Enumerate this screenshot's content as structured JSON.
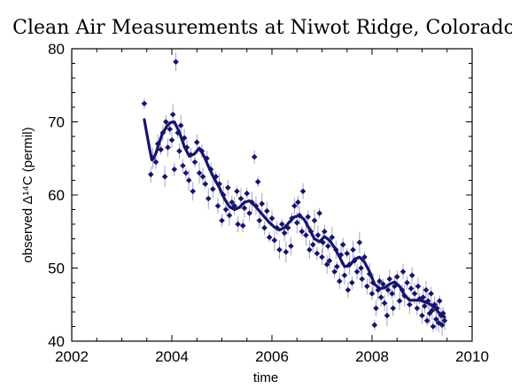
{
  "colors": {
    "marker": "#14146e",
    "fit_line": "#14146e",
    "error_bar": "#a3a3c8",
    "axis": "#000000",
    "background": "#ffffff"
  },
  "chart_data": {
    "type": "scatter",
    "title": "Clean Air Measurements at Niwot Ridge, Colorado",
    "xlabel": "time",
    "ylabel": "observed Δ¹⁴C (permil)",
    "xlim": [
      2002,
      2010
    ],
    "ylim": [
      40,
      80
    ],
    "xticks": [
      2002,
      2004,
      2006,
      2008,
      2010
    ],
    "yticks": [
      40,
      50,
      60,
      70,
      80
    ],
    "grid": false,
    "legend": "none",
    "series": [
      {
        "kind": "points",
        "marker": "diamond",
        "error_bars": true,
        "points": [
          [
            2003.45,
            72.5
          ],
          [
            2003.58,
            62.8
          ],
          [
            2003.62,
            65.0
          ],
          [
            2003.68,
            64.5
          ],
          [
            2003.72,
            67.0
          ],
          [
            2003.78,
            66.2
          ],
          [
            2003.82,
            68.5
          ],
          [
            2003.86,
            62.5
          ],
          [
            2003.88,
            70.0
          ],
          [
            2003.92,
            66.5
          ],
          [
            2003.96,
            69.0
          ],
          [
            2004.0,
            67.5
          ],
          [
            2004.02,
            71.0
          ],
          [
            2004.05,
            63.5
          ],
          [
            2004.08,
            78.2
          ],
          [
            2004.12,
            68.5
          ],
          [
            2004.15,
            66.0
          ],
          [
            2004.18,
            69.5
          ],
          [
            2004.22,
            64.0
          ],
          [
            2004.25,
            67.8
          ],
          [
            2004.28,
            63.0
          ],
          [
            2004.3,
            66.5
          ],
          [
            2004.34,
            62.0
          ],
          [
            2004.38,
            65.5
          ],
          [
            2004.42,
            60.5
          ],
          [
            2004.46,
            64.5
          ],
          [
            2004.5,
            67.2
          ],
          [
            2004.55,
            63.0
          ],
          [
            2004.6,
            66.0
          ],
          [
            2004.62,
            62.5
          ],
          [
            2004.67,
            61.5
          ],
          [
            2004.7,
            65.0
          ],
          [
            2004.73,
            59.5
          ],
          [
            2004.78,
            63.5
          ],
          [
            2004.82,
            60.8
          ],
          [
            2004.88,
            62.5
          ],
          [
            2004.92,
            58.5
          ],
          [
            2004.95,
            61.5
          ],
          [
            2005.0,
            56.5
          ],
          [
            2005.03,
            60.0
          ],
          [
            2005.08,
            58.0
          ],
          [
            2005.12,
            61.0
          ],
          [
            2005.15,
            57.2
          ],
          [
            2005.2,
            59.0
          ],
          [
            2005.25,
            58.5
          ],
          [
            2005.3,
            60.5
          ],
          [
            2005.32,
            56.0
          ],
          [
            2005.38,
            59.5
          ],
          [
            2005.42,
            55.8
          ],
          [
            2005.45,
            58.2
          ],
          [
            2005.5,
            60.2
          ],
          [
            2005.55,
            57.5
          ],
          [
            2005.6,
            59.0
          ],
          [
            2005.65,
            65.2
          ],
          [
            2005.68,
            58.5
          ],
          [
            2005.72,
            61.8
          ],
          [
            2005.75,
            56.5
          ],
          [
            2005.8,
            58.8
          ],
          [
            2005.85,
            55.5
          ],
          [
            2005.9,
            57.8
          ],
          [
            2005.95,
            54.2
          ],
          [
            2006.0,
            56.8
          ],
          [
            2006.05,
            53.8
          ],
          [
            2006.1,
            55.5
          ],
          [
            2006.15,
            52.5
          ],
          [
            2006.2,
            56.0
          ],
          [
            2006.25,
            54.8
          ],
          [
            2006.28,
            52.2
          ],
          [
            2006.32,
            55.5
          ],
          [
            2006.38,
            53.0
          ],
          [
            2006.4,
            56.8
          ],
          [
            2006.45,
            58.5
          ],
          [
            2006.5,
            56.2
          ],
          [
            2006.52,
            59.0
          ],
          [
            2006.55,
            57.2
          ],
          [
            2006.6,
            55.0
          ],
          [
            2006.62,
            60.5
          ],
          [
            2006.68,
            54.5
          ],
          [
            2006.72,
            57.0
          ],
          [
            2006.75,
            52.5
          ],
          [
            2006.78,
            55.0
          ],
          [
            2006.82,
            53.2
          ],
          [
            2006.85,
            56.5
          ],
          [
            2006.9,
            52.0
          ],
          [
            2006.92,
            54.5
          ],
          [
            2006.95,
            57.5
          ],
          [
            2007.0,
            51.5
          ],
          [
            2007.02,
            53.5
          ],
          [
            2007.05,
            55.0
          ],
          [
            2007.1,
            50.5
          ],
          [
            2007.12,
            53.0
          ],
          [
            2007.15,
            51.0
          ],
          [
            2007.2,
            54.2
          ],
          [
            2007.25,
            49.5
          ],
          [
            2007.28,
            52.5
          ],
          [
            2007.3,
            50.2
          ],
          [
            2007.35,
            48.2
          ],
          [
            2007.38,
            51.8
          ],
          [
            2007.42,
            53.2
          ],
          [
            2007.45,
            49.0
          ],
          [
            2007.5,
            52.0
          ],
          [
            2007.52,
            47.0
          ],
          [
            2007.55,
            50.5
          ],
          [
            2007.6,
            48.0
          ],
          [
            2007.62,
            52.5
          ],
          [
            2007.65,
            51.0
          ],
          [
            2007.7,
            49.5
          ],
          [
            2007.75,
            53.5
          ],
          [
            2007.78,
            50.0
          ],
          [
            2007.8,
            48.5
          ],
          [
            2007.85,
            51.5
          ],
          [
            2007.9,
            47.5
          ],
          [
            2007.95,
            49.2
          ],
          [
            2008.0,
            46.5
          ],
          [
            2008.02,
            48.0
          ],
          [
            2008.05,
            42.2
          ],
          [
            2008.08,
            44.5
          ],
          [
            2008.12,
            47.0
          ],
          [
            2008.15,
            48.2
          ],
          [
            2008.18,
            46.0
          ],
          [
            2008.22,
            47.8
          ],
          [
            2008.25,
            45.2
          ],
          [
            2008.3,
            43.5
          ],
          [
            2008.32,
            47.0
          ],
          [
            2008.35,
            48.5
          ],
          [
            2008.4,
            46.5
          ],
          [
            2008.42,
            44.5
          ],
          [
            2008.45,
            47.5
          ],
          [
            2008.5,
            48.8
          ],
          [
            2008.55,
            45.5
          ],
          [
            2008.6,
            47.0
          ],
          [
            2008.62,
            49.5
          ],
          [
            2008.65,
            46.2
          ],
          [
            2008.7,
            48.0
          ],
          [
            2008.75,
            45.0
          ],
          [
            2008.78,
            47.2
          ],
          [
            2008.8,
            49.0
          ],
          [
            2008.85,
            46.5
          ],
          [
            2008.9,
            44.5
          ],
          [
            2008.92,
            47.5
          ],
          [
            2008.95,
            45.8
          ],
          [
            2009.0,
            43.5
          ],
          [
            2009.02,
            46.0
          ],
          [
            2009.05,
            44.8
          ],
          [
            2009.08,
            47.0
          ],
          [
            2009.1,
            42.8
          ],
          [
            2009.12,
            45.5
          ],
          [
            2009.15,
            43.8
          ],
          [
            2009.18,
            46.5
          ],
          [
            2009.2,
            44.2
          ],
          [
            2009.22,
            42.0
          ],
          [
            2009.25,
            45.0
          ],
          [
            2009.28,
            43.0
          ],
          [
            2009.3,
            44.5
          ],
          [
            2009.33,
            42.5
          ],
          [
            2009.35,
            45.5
          ],
          [
            2009.38,
            43.5
          ],
          [
            2009.4,
            42.2
          ],
          [
            2009.42,
            43.8
          ],
          [
            2009.45,
            42.8
          ]
        ]
      },
      {
        "kind": "line",
        "points": [
          [
            2003.45,
            70.3
          ],
          [
            2003.55,
            66.5
          ],
          [
            2003.6,
            64.8
          ],
          [
            2003.67,
            65.5
          ],
          [
            2003.8,
            68.2
          ],
          [
            2003.9,
            69.4
          ],
          [
            2003.97,
            69.9
          ],
          [
            2004.05,
            70.0
          ],
          [
            2004.15,
            68.6
          ],
          [
            2004.25,
            66.6
          ],
          [
            2004.35,
            65.3
          ],
          [
            2004.45,
            65.6
          ],
          [
            2004.55,
            66.4
          ],
          [
            2004.65,
            65.2
          ],
          [
            2004.75,
            63.6
          ],
          [
            2004.85,
            62.2
          ],
          [
            2004.95,
            61.0
          ],
          [
            2005.05,
            59.5
          ],
          [
            2005.15,
            58.4
          ],
          [
            2005.25,
            58.0
          ],
          [
            2005.35,
            58.3
          ],
          [
            2005.45,
            59.0
          ],
          [
            2005.55,
            59.2
          ],
          [
            2005.65,
            58.6
          ],
          [
            2005.75,
            57.8
          ],
          [
            2005.85,
            57.0
          ],
          [
            2005.95,
            56.2
          ],
          [
            2006.05,
            55.6
          ],
          [
            2006.15,
            55.2
          ],
          [
            2006.25,
            55.5
          ],
          [
            2006.35,
            56.3
          ],
          [
            2006.45,
            57.0
          ],
          [
            2006.55,
            57.2
          ],
          [
            2006.65,
            56.6
          ],
          [
            2006.75,
            55.3
          ],
          [
            2006.85,
            54.0
          ],
          [
            2006.95,
            53.6
          ],
          [
            2007.05,
            54.3
          ],
          [
            2007.15,
            53.8
          ],
          [
            2007.25,
            52.8
          ],
          [
            2007.35,
            51.5
          ],
          [
            2007.45,
            50.2
          ],
          [
            2007.55,
            50.3
          ],
          [
            2007.65,
            51.2
          ],
          [
            2007.75,
            51.5
          ],
          [
            2007.85,
            50.8
          ],
          [
            2007.95,
            49.5
          ],
          [
            2008.05,
            47.8
          ],
          [
            2008.15,
            47.2
          ],
          [
            2008.25,
            47.3
          ],
          [
            2008.35,
            47.8
          ],
          [
            2008.45,
            48.1
          ],
          [
            2008.55,
            47.5
          ],
          [
            2008.65,
            46.3
          ],
          [
            2008.75,
            45.6
          ],
          [
            2008.85,
            45.6
          ],
          [
            2008.95,
            45.6
          ],
          [
            2009.05,
            45.4
          ],
          [
            2009.15,
            45.1
          ],
          [
            2009.25,
            44.6
          ],
          [
            2009.35,
            43.8
          ],
          [
            2009.45,
            43.3
          ]
        ]
      }
    ]
  }
}
